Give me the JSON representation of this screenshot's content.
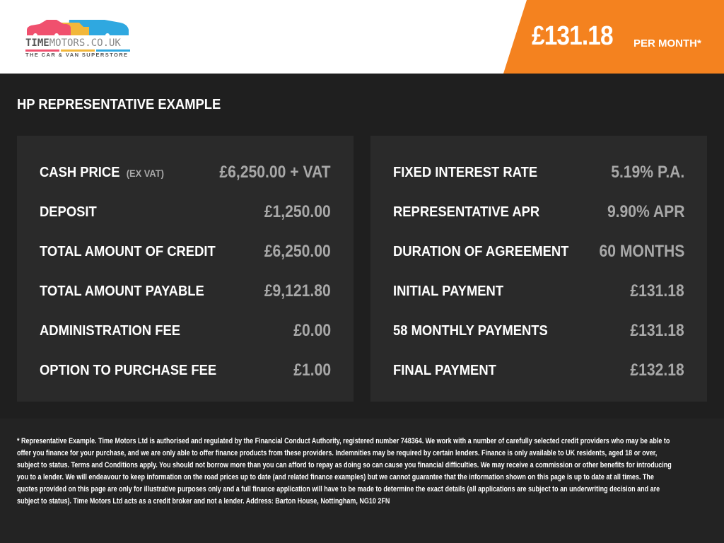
{
  "header": {
    "logo_text_a": "TIME",
    "logo_text_b": "MOTORS.CO.UK",
    "logo_tagline": "THE CAR & VAN SUPERSTORE",
    "price": "£131.18",
    "per_month": "PER MONTH*",
    "accent": "#f4821f"
  },
  "title": "HP REPRESENTATIVE EXAMPLE",
  "left": [
    {
      "label": "CASH PRICE",
      "note": "(EX VAT)",
      "value": "£6,250.00 + VAT"
    },
    {
      "label": "DEPOSIT",
      "value": "£1,250.00"
    },
    {
      "label": "TOTAL AMOUNT OF CREDIT",
      "value": "£6,250.00"
    },
    {
      "label": "TOTAL AMOUNT PAYABLE",
      "value": "£9,121.80"
    },
    {
      "label": "ADMINISTRATION FEE",
      "value": "£0.00"
    },
    {
      "label": "OPTION TO PURCHASE FEE",
      "value": "£1.00"
    }
  ],
  "right": [
    {
      "label": "FIXED INTEREST RATE",
      "value": "5.19% P.A."
    },
    {
      "label": "REPRESENTATIVE APR",
      "value": "9.90% APR"
    },
    {
      "label": "DURATION OF AGREEMENT",
      "value": "60 MONTHS"
    },
    {
      "label": "INITIAL PAYMENT",
      "value": "£131.18"
    },
    {
      "label": "58 MONTHLY PAYMENTS",
      "value": "£131.18"
    },
    {
      "label": "FINAL PAYMENT",
      "value": "£132.18"
    }
  ],
  "disclaimer": "* Representative Example. Time Motors Ltd is authorised and regulated by the Financial Conduct Authority, registered number 748364. We work with a number of carefully selected credit providers who may be able to offer you finance for your purchase, and we are only able to offer finance products from these providers. Indemnities may be required by certain lenders. Finance is only available to UK residents, aged 18 or over, subject to status. Terms and Conditions apply. You should not borrow more than you can afford to repay as doing so can cause you financial difficulties. We may receive a commission or other benefits for introducing you to a lender. We will endeavour to keep information on the road prices up to date (and related finance examples) but we cannot guarantee that the information shown on this page is up to date at all times. The quotes provided on this page are only for illustrative purposes only and a full finance application will have to be made to determine the exact details (all applications are subject to an underwriting decision and are subject to status). Time Motors Ltd acts as a credit broker and not a lender. Address: Barton House, Nottingham, NG10 2FN"
}
